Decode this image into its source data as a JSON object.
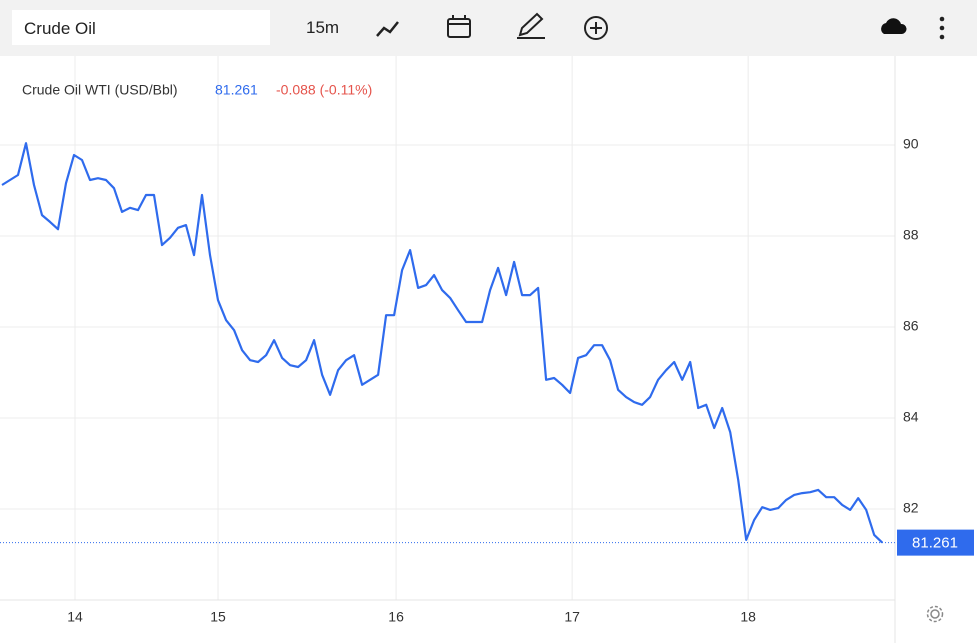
{
  "toolbar": {
    "search": "Crude Oil",
    "interval": "15m"
  },
  "chart_data": {
    "type": "line",
    "title": "Crude Oil WTI (USD/Bbl)",
    "last_price": 81.261,
    "change": "-0.088 (-0.11%)",
    "color": "#2f6bed",
    "values": [
      89.12,
      89.23,
      89.34,
      90.04,
      89.12,
      88.46,
      88.31,
      88.15,
      89.16,
      89.78,
      89.67,
      89.23,
      89.27,
      89.23,
      89.05,
      88.53,
      88.62,
      88.57,
      88.9,
      88.9,
      87.8,
      87.96,
      88.18,
      88.24,
      87.58,
      88.9,
      87.58,
      86.59,
      86.15,
      85.93,
      85.49,
      85.27,
      85.23,
      85.38,
      85.71,
      85.32,
      85.16,
      85.12,
      85.27,
      85.71,
      84.95,
      84.51,
      85.05,
      85.27,
      85.38,
      84.73,
      84.84,
      84.95,
      86.26,
      86.26,
      87.25,
      87.69,
      86.86,
      86.92,
      87.14,
      86.81,
      86.64,
      86.37,
      86.11,
      86.11,
      86.11,
      86.81,
      87.3,
      86.7,
      87.43,
      86.7,
      86.7,
      86.86,
      84.84,
      84.88,
      84.73,
      84.55,
      85.32,
      85.38,
      85.6,
      85.6,
      85.27,
      84.62,
      84.46,
      84.35,
      84.29,
      84.46,
      84.84,
      85.05,
      85.23,
      84.84,
      85.23,
      84.22,
      84.29,
      83.78,
      84.22,
      83.69,
      82.64,
      81.32,
      81.76,
      82.04,
      81.98,
      82.02,
      82.2,
      82.31,
      82.35,
      82.37,
      82.42,
      82.26,
      82.26,
      82.09,
      81.98,
      82.24,
      81.98,
      81.43,
      81.261
    ],
    "xlim": [
      -0.25,
      111.6
    ],
    "xticks": [
      {
        "value": 9.125,
        "label": "14"
      },
      {
        "value": 27,
        "label": "15"
      },
      {
        "value": 49.25,
        "label": "16"
      },
      {
        "value": 71.25,
        "label": "17"
      },
      {
        "value": 93.25,
        "label": "18"
      }
    ],
    "ylim": [
      80,
      92
    ],
    "yticks": [
      82,
      84,
      86,
      88,
      90
    ],
    "grid": true
  }
}
